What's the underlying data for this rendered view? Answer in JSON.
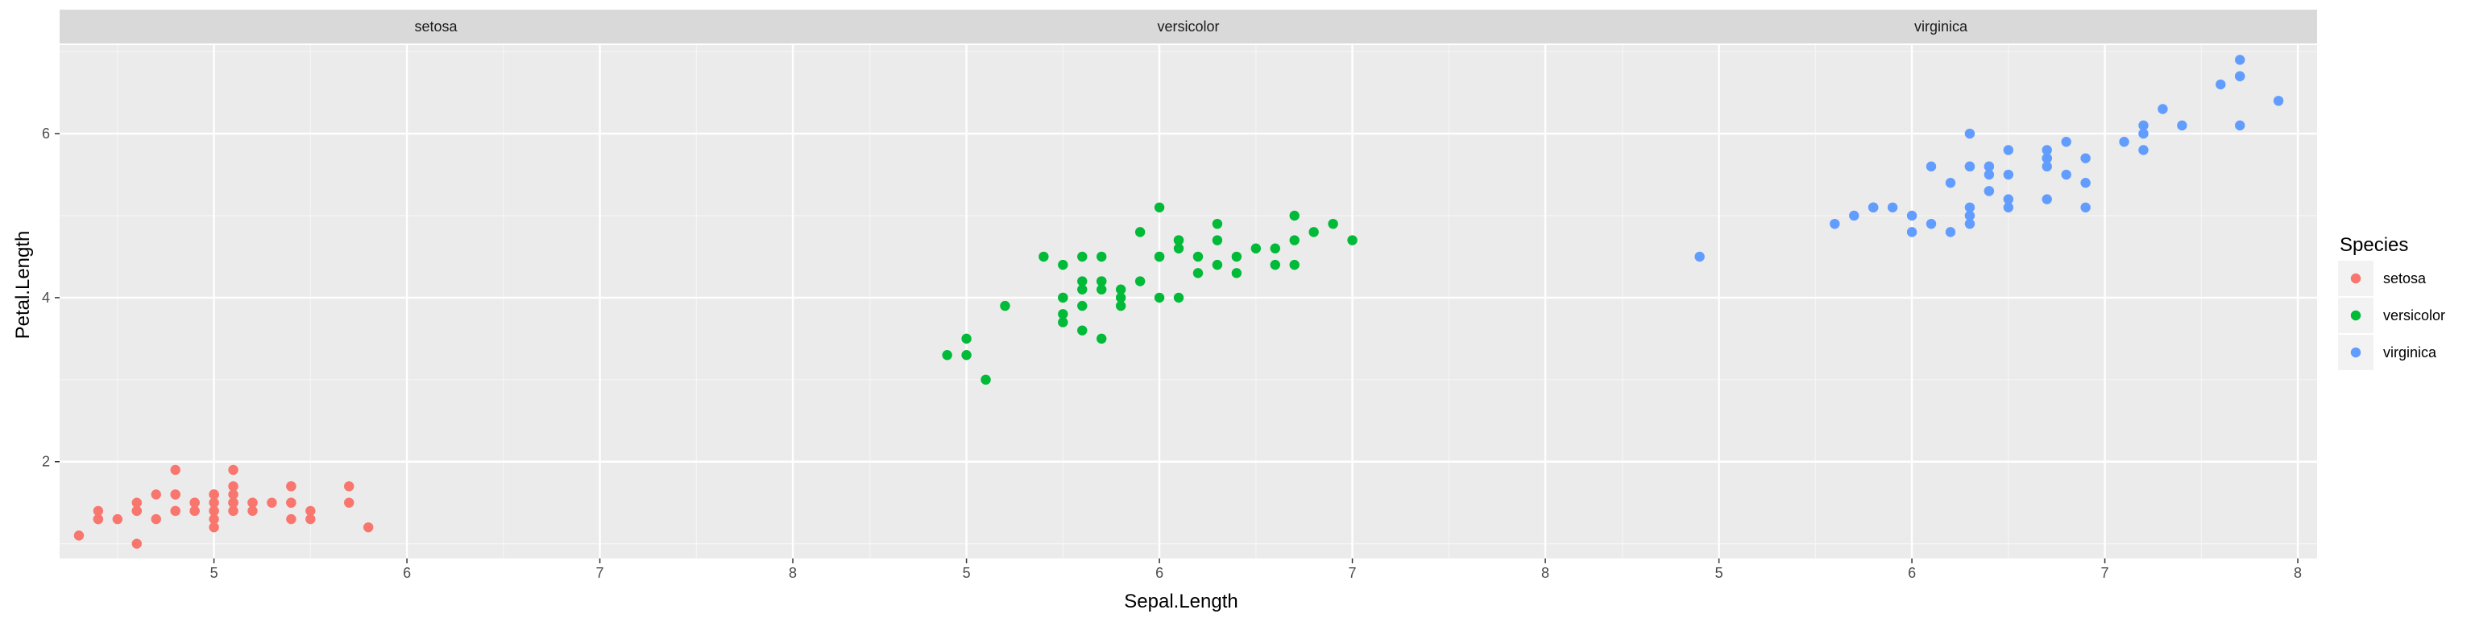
{
  "chart_data": {
    "type": "scatter",
    "xlabel": "Sepal.Length",
    "ylabel": "Petal.Length",
    "xlim": [
      4.2,
      8.1
    ],
    "ylim": [
      0.82,
      7.08
    ],
    "x_ticks": [
      5,
      6,
      7,
      8
    ],
    "x_tick_labels": [
      "5",
      "6",
      "7",
      "8"
    ],
    "y_ticks": [
      2,
      4,
      6
    ],
    "y_tick_labels": [
      "2",
      "4",
      "6"
    ],
    "grid": true,
    "legend": {
      "title": "Species",
      "position": "right"
    },
    "facets": [
      {
        "name": "setosa",
        "color": "#F8766D",
        "points": [
          [
            5.1,
            1.4
          ],
          [
            4.9,
            1.4
          ],
          [
            4.7,
            1.3
          ],
          [
            4.6,
            1.5
          ],
          [
            5.0,
            1.4
          ],
          [
            5.4,
            1.7
          ],
          [
            4.6,
            1.4
          ],
          [
            5.0,
            1.5
          ],
          [
            4.4,
            1.4
          ],
          [
            4.9,
            1.5
          ],
          [
            5.4,
            1.5
          ],
          [
            4.8,
            1.6
          ],
          [
            4.8,
            1.4
          ],
          [
            4.3,
            1.1
          ],
          [
            5.8,
            1.2
          ],
          [
            5.7,
            1.5
          ],
          [
            5.4,
            1.3
          ],
          [
            5.1,
            1.4
          ],
          [
            5.7,
            1.7
          ],
          [
            5.1,
            1.5
          ],
          [
            5.4,
            1.7
          ],
          [
            5.1,
            1.5
          ],
          [
            4.6,
            1.0
          ],
          [
            5.1,
            1.7
          ],
          [
            4.8,
            1.9
          ],
          [
            5.0,
            1.6
          ],
          [
            5.0,
            1.6
          ],
          [
            5.2,
            1.5
          ],
          [
            5.2,
            1.4
          ],
          [
            4.7,
            1.6
          ],
          [
            4.8,
            1.6
          ],
          [
            5.4,
            1.5
          ],
          [
            5.2,
            1.5
          ],
          [
            5.5,
            1.4
          ],
          [
            4.9,
            1.5
          ],
          [
            5.0,
            1.2
          ],
          [
            5.5,
            1.3
          ],
          [
            4.9,
            1.4
          ],
          [
            4.4,
            1.3
          ],
          [
            5.1,
            1.5
          ],
          [
            5.0,
            1.3
          ],
          [
            4.5,
            1.3
          ],
          [
            4.4,
            1.3
          ],
          [
            5.0,
            1.6
          ],
          [
            5.1,
            1.9
          ],
          [
            4.8,
            1.4
          ],
          [
            5.1,
            1.6
          ],
          [
            4.6,
            1.4
          ],
          [
            5.3,
            1.5
          ],
          [
            5.0,
            1.4
          ]
        ]
      },
      {
        "name": "versicolor",
        "color": "#00BA38",
        "points": [
          [
            7.0,
            4.7
          ],
          [
            6.4,
            4.5
          ],
          [
            6.9,
            4.9
          ],
          [
            5.5,
            4.0
          ],
          [
            6.5,
            4.6
          ],
          [
            5.7,
            4.5
          ],
          [
            6.3,
            4.7
          ],
          [
            4.9,
            3.3
          ],
          [
            6.6,
            4.6
          ],
          [
            5.2,
            3.9
          ],
          [
            5.0,
            3.5
          ],
          [
            5.9,
            4.2
          ],
          [
            6.0,
            4.0
          ],
          [
            6.1,
            4.7
          ],
          [
            5.6,
            3.6
          ],
          [
            6.7,
            4.4
          ],
          [
            5.6,
            4.5
          ],
          [
            5.8,
            4.1
          ],
          [
            6.2,
            4.5
          ],
          [
            5.6,
            3.9
          ],
          [
            5.9,
            4.8
          ],
          [
            6.1,
            4.0
          ],
          [
            6.3,
            4.9
          ],
          [
            6.1,
            4.7
          ],
          [
            6.4,
            4.3
          ],
          [
            6.6,
            4.4
          ],
          [
            6.8,
            4.8
          ],
          [
            6.7,
            5.0
          ],
          [
            6.0,
            4.5
          ],
          [
            5.7,
            3.5
          ],
          [
            5.5,
            3.8
          ],
          [
            5.5,
            3.7
          ],
          [
            5.8,
            3.9
          ],
          [
            6.0,
            5.1
          ],
          [
            5.4,
            4.5
          ],
          [
            6.0,
            4.5
          ],
          [
            6.7,
            4.7
          ],
          [
            6.3,
            4.4
          ],
          [
            5.6,
            4.1
          ],
          [
            5.5,
            4.0
          ],
          [
            5.5,
            4.4
          ],
          [
            6.1,
            4.6
          ],
          [
            5.8,
            4.0
          ],
          [
            5.0,
            3.3
          ],
          [
            5.6,
            4.2
          ],
          [
            5.7,
            4.2
          ],
          [
            5.7,
            4.2
          ],
          [
            6.2,
            4.3
          ],
          [
            5.1,
            3.0
          ],
          [
            5.7,
            4.1
          ]
        ]
      },
      {
        "name": "virginica",
        "color": "#619CFF",
        "points": [
          [
            6.3,
            6.0
          ],
          [
            5.8,
            5.1
          ],
          [
            7.1,
            5.9
          ],
          [
            6.3,
            5.6
          ],
          [
            6.5,
            5.8
          ],
          [
            7.6,
            6.6
          ],
          [
            4.9,
            4.5
          ],
          [
            7.3,
            6.3
          ],
          [
            6.7,
            5.8
          ],
          [
            7.2,
            6.1
          ],
          [
            6.5,
            5.1
          ],
          [
            6.4,
            5.3
          ],
          [
            6.8,
            5.5
          ],
          [
            5.7,
            5.0
          ],
          [
            5.8,
            5.1
          ],
          [
            6.4,
            5.3
          ],
          [
            6.5,
            5.5
          ],
          [
            7.7,
            6.7
          ],
          [
            7.7,
            6.9
          ],
          [
            6.0,
            5.0
          ],
          [
            6.9,
            5.7
          ],
          [
            5.6,
            4.9
          ],
          [
            7.7,
            6.7
          ],
          [
            6.3,
            4.9
          ],
          [
            6.7,
            5.7
          ],
          [
            7.2,
            6.0
          ],
          [
            6.2,
            4.8
          ],
          [
            6.1,
            4.9
          ],
          [
            6.4,
            5.6
          ],
          [
            7.2,
            5.8
          ],
          [
            7.4,
            6.1
          ],
          [
            7.9,
            6.4
          ],
          [
            6.4,
            5.6
          ],
          [
            6.3,
            5.1
          ],
          [
            6.1,
            5.6
          ],
          [
            7.7,
            6.1
          ],
          [
            6.3,
            5.6
          ],
          [
            6.4,
            5.5
          ],
          [
            6.0,
            4.8
          ],
          [
            6.9,
            5.4
          ],
          [
            6.7,
            5.6
          ],
          [
            6.9,
            5.1
          ],
          [
            5.8,
            5.1
          ],
          [
            6.8,
            5.9
          ],
          [
            6.7,
            5.7
          ],
          [
            6.7,
            5.2
          ],
          [
            6.3,
            5.0
          ],
          [
            6.5,
            5.2
          ],
          [
            6.2,
            5.4
          ],
          [
            5.9,
            5.1
          ]
        ]
      }
    ]
  }
}
